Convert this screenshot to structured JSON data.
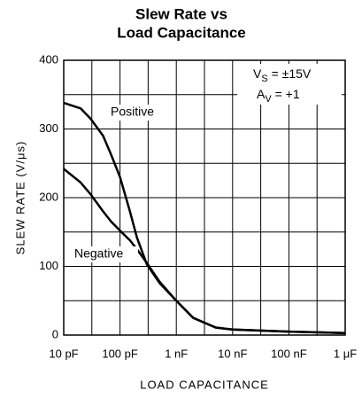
{
  "chart_data": {
    "type": "line",
    "title": [
      "Slew Rate vs",
      "Load Capacitance"
    ],
    "x_label": "LOAD CAPACITANCE",
    "y_label": "SLEW RATE (V/μs)",
    "x_log": true,
    "xlim": [
      10,
      1000000
    ],
    "xticks": [
      {
        "value": 10,
        "label": "10 pF"
      },
      {
        "value": 100,
        "label": "100 pF"
      },
      {
        "value": 1000,
        "label": "1 nF"
      },
      {
        "value": 10000,
        "label": "10 nF"
      },
      {
        "value": 100000,
        "label": "100 nF"
      },
      {
        "value": 1000000,
        "label": "1 μF"
      }
    ],
    "minor_xticks": [
      31.6,
      316,
      3162,
      31623,
      316228
    ],
    "ylim": [
      0,
      400
    ],
    "yticks": [
      0,
      100,
      200,
      300,
      400
    ],
    "minor_yticks": [
      50,
      150,
      250,
      350
    ],
    "grid": true,
    "annotations": [
      {
        "main": "V",
        "sub": "S",
        "rest": " = ±15V"
      },
      {
        "main": "A",
        "sub": "V",
        "rest": " = +1"
      }
    ],
    "x": [
      10,
      20,
      30,
      50,
      70,
      100,
      150,
      200,
      300,
      500,
      1000,
      2000,
      5000,
      10000,
      100000,
      1000000
    ],
    "series": [
      {
        "name": "Positive",
        "color": "#000",
        "values": [
          338,
          330,
          315,
          290,
          262,
          230,
          180,
          142,
          103,
          76,
          50,
          25,
          11,
          8,
          5,
          3
        ]
      },
      {
        "name": "Negative",
        "color": "#000",
        "values": [
          242,
          222,
          205,
          180,
          165,
          152,
          138,
          125,
          105,
          78,
          50,
          25,
          11,
          8,
          5,
          3
        ]
      }
    ]
  }
}
